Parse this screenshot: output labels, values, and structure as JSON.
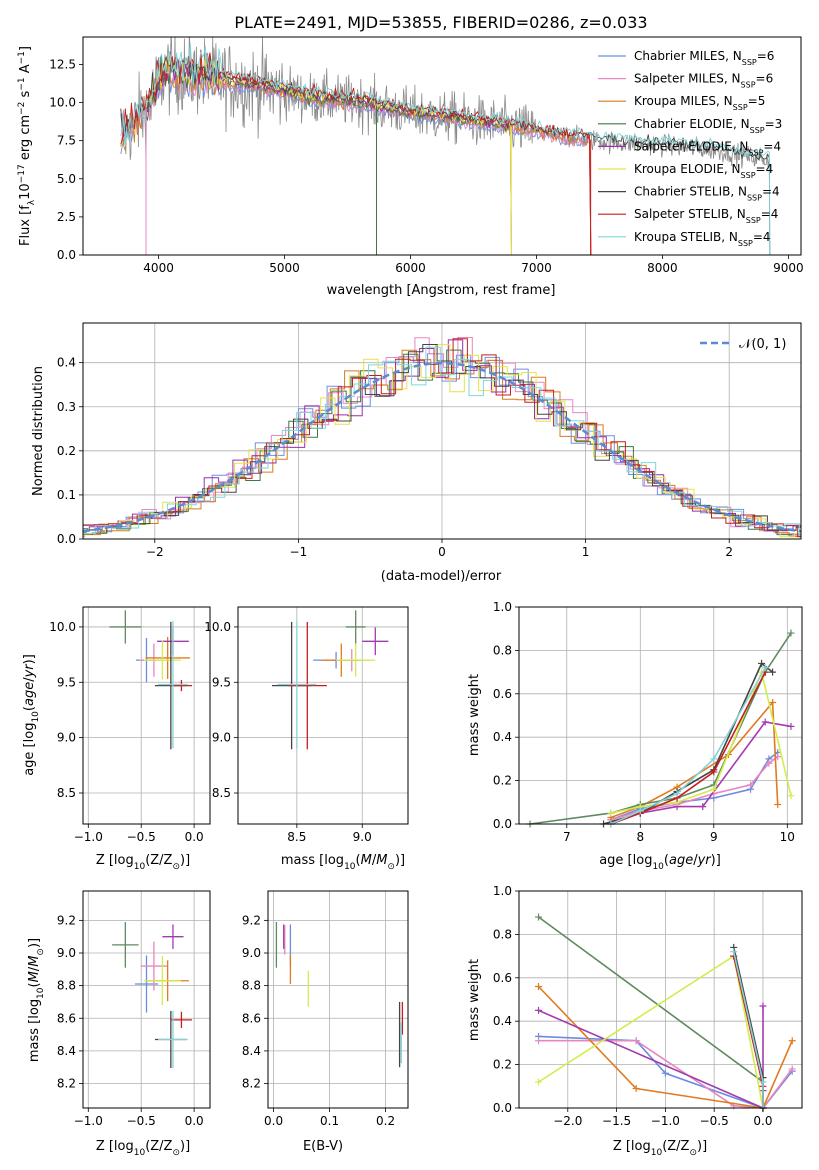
{
  "figure_title": "PLATE=2491, MJD=53855, FIBERID=0286, z=0.033",
  "legend_labels": {
    "model_prefix": [
      "Chabrier MILES, N",
      "Salpeter MILES, N",
      "Kroupa MILES, N",
      "Chabrier ELODIE, N",
      "Salpeter ELODIE, N",
      "Kroupa ELODIE, N",
      "Chabrier STELIB, N",
      "Salpeter STELIB, N",
      "Kroupa STELIB, N"
    ],
    "model_sub": "SSP",
    "model_count": [
      "=6",
      "=6",
      "=5",
      "=3",
      "=4",
      "=4",
      "=4",
      "=4",
      "=4"
    ],
    "normal": "𝒩(0, 1)"
  },
  "colors": [
    "#6f8fe0",
    "#e887c3",
    "#d47c1f",
    "#3d7a3d",
    "#9b2fad",
    "#e6e34a",
    "#444444",
    "#c81e1e",
    "#7fd6da"
  ],
  "colors_panel": {
    "p3": [
      "#6b8ce0",
      "#e587c0",
      "#e07b20",
      "#5f8a5f",
      "#a33bb0",
      "#d4ec4c",
      "#444444",
      "#c81e1e",
      "#86d2d8"
    ],
    "normal_line": "#5b8bd6",
    "spectrum_data": "#8a8a8a"
  },
  "chart_data": [
    {
      "type": "line",
      "title": "PLATE=2491, MJD=53855, FIBERID=0286, z=0.033",
      "xlabel": "wavelength [Angstrom, rest frame]",
      "ylabel": "Flux [f_λ 10^-17 erg cm^-2 s^-1 A^-1]",
      "xlim": [
        3400,
        9100
      ],
      "ylim": [
        0,
        14.3
      ],
      "xticks": [
        4000,
        5000,
        6000,
        7000,
        8000,
        9000
      ],
      "yticks": [
        0.0,
        2.5,
        5.0,
        7.5,
        10.0,
        12.5
      ],
      "continuum": [
        [
          3720,
          7.9
        ],
        [
          3900,
          9.5
        ],
        [
          4050,
          12.0
        ],
        [
          4300,
          11.8
        ],
        [
          4600,
          11.3
        ],
        [
          4850,
          11.0
        ],
        [
          5200,
          10.3
        ],
        [
          5600,
          10.0
        ],
        [
          6000,
          9.3
        ],
        [
          6400,
          8.9
        ],
        [
          6800,
          8.4
        ],
        [
          7200,
          7.8
        ],
        [
          7600,
          7.4
        ],
        [
          8000,
          7.2
        ],
        [
          8400,
          6.9
        ],
        [
          8850,
          6.2
        ]
      ],
      "data_range": [
        3700,
        8850
      ],
      "model_ranges": [
        [
          3700,
          7430
        ],
        [
          3700,
          7430
        ],
        [
          3700,
          7430
        ],
        [
          3900,
          6800
        ],
        [
          3900,
          6800
        ],
        [
          3900,
          6800
        ],
        [
          3700,
          8850
        ],
        [
          3700,
          7430
        ],
        [
          3700,
          8850
        ]
      ],
      "dropouts": [
        3900,
        5730,
        6800,
        7430
      ]
    },
    {
      "type": "histogram",
      "xlabel": "(data-model)/error",
      "ylabel": "Normed distribution",
      "xlim": [
        -2.5,
        2.5
      ],
      "ylim": [
        0,
        0.49
      ],
      "xticks": [
        -2,
        -1,
        0,
        1,
        2
      ],
      "yticks": [
        0.0,
        0.1,
        0.2,
        0.3,
        0.4
      ],
      "bin_width": 0.1,
      "legend": "𝒩(0, 1)"
    },
    {
      "type": "errorbar",
      "xlabel": "Z [log10(Z/Z⊙)]",
      "ylabel": "age [log10(age/yr)]",
      "xlim": [
        -1.05,
        0.15
      ],
      "ylim": [
        8.22,
        10.18
      ],
      "xticks": [
        -1.0,
        -0.5,
        0.0
      ],
      "yticks": [
        8.5,
        9.0,
        9.5,
        10.0
      ],
      "points": [
        [
          -0.45,
          9.7,
          0.2,
          0.4
        ],
        [
          -0.38,
          9.7,
          0.28,
          0.3
        ],
        [
          -0.25,
          9.72,
          0.42,
          0.38
        ],
        [
          -0.65,
          10.0,
          0.3,
          0.3
        ],
        [
          -0.2,
          9.87,
          0.3,
          0.25
        ],
        [
          -0.3,
          9.7,
          0.35,
          0.35
        ],
        [
          -0.22,
          9.47,
          0.3,
          1.15
        ],
        [
          -0.12,
          9.47,
          0.2,
          0.1
        ],
        [
          -0.2,
          9.48,
          0.28,
          1.15
        ]
      ]
    },
    {
      "type": "errorbar",
      "xlabel": "mass [log10(M/M⊙)]",
      "ylabel": "",
      "xlim": [
        8.05,
        9.35
      ],
      "ylim": [
        8.22,
        10.18
      ],
      "xticks": [
        8.5,
        9.0
      ],
      "yticks": [
        8.5,
        9.0,
        9.5,
        10.0
      ],
      "points": [
        [
          8.8,
          9.7,
          0.35,
          0.15
        ],
        [
          8.92,
          9.7,
          0.3,
          0.2
        ],
        [
          8.84,
          9.7,
          0.3,
          0.3
        ],
        [
          8.95,
          10.0,
          0.15,
          0.3
        ],
        [
          9.1,
          9.87,
          0.2,
          0.25
        ],
        [
          8.95,
          9.7,
          0.3,
          0.3
        ],
        [
          8.46,
          9.47,
          0.3,
          1.15
        ],
        [
          8.58,
          9.47,
          0.3,
          1.15
        ],
        [
          8.5,
          9.48,
          0.3,
          1.15
        ]
      ]
    },
    {
      "type": "line",
      "xlabel": "age [log10(age/yr)]",
      "ylabel": "mass weight",
      "xlim": [
        6.35,
        10.2
      ],
      "ylim": [
        0,
        1.0
      ],
      "xticks": [
        7,
        8,
        9,
        10
      ],
      "yticks": [
        0.0,
        0.2,
        0.4,
        0.6,
        0.8,
        1.0
      ],
      "series": [
        {
          "x": [
            7.6,
            8.0,
            8.5,
            9.0,
            9.5,
            9.75,
            9.87
          ],
          "y": [
            0.02,
            0.07,
            0.1,
            0.12,
            0.16,
            0.3,
            0.33
          ]
        },
        {
          "x": [
            7.6,
            8.0,
            8.5,
            9.0,
            9.5,
            9.75,
            9.87
          ],
          "y": [
            0.02,
            0.06,
            0.09,
            0.14,
            0.18,
            0.28,
            0.31
          ]
        },
        {
          "x": [
            7.6,
            8.0,
            8.5,
            9.2,
            9.8,
            9.87
          ],
          "y": [
            0.03,
            0.08,
            0.17,
            0.32,
            0.56,
            0.09
          ]
        },
        {
          "x": [
            6.5,
            7.6,
            8.0,
            8.5,
            9.0,
            9.7,
            10.05
          ],
          "y": [
            0.0,
            0.05,
            0.09,
            0.12,
            0.18,
            0.7,
            0.88
          ]
        },
        {
          "x": [
            7.6,
            8.0,
            8.5,
            8.85,
            9.7,
            10.05
          ],
          "y": [
            0.0,
            0.05,
            0.08,
            0.08,
            0.47,
            0.45
          ]
        },
        {
          "x": [
            7.6,
            8.0,
            8.5,
            9.0,
            9.65,
            10.05
          ],
          "y": [
            0.05,
            0.08,
            0.1,
            0.16,
            0.7,
            0.13
          ]
        },
        {
          "x": [
            7.5,
            8.0,
            8.5,
            9.0,
            9.65,
            9.8
          ],
          "y": [
            0.0,
            0.05,
            0.15,
            0.25,
            0.74,
            0.7
          ]
        },
        {
          "x": [
            7.6,
            8.0,
            8.5,
            9.0,
            9.7
          ],
          "y": [
            0.0,
            0.05,
            0.12,
            0.24,
            0.7
          ]
        },
        {
          "x": [
            7.6,
            8.0,
            8.5,
            9.0,
            9.7
          ],
          "y": [
            0.0,
            0.06,
            0.14,
            0.3,
            0.72
          ]
        }
      ]
    },
    {
      "type": "errorbar",
      "xlabel": "Z [log10(Z/Z⊙)]",
      "ylabel": "mass [log10(M/M⊙)]",
      "xlim": [
        -1.05,
        0.15
      ],
      "ylim": [
        8.05,
        9.38
      ],
      "xticks": [
        -1.0,
        -0.5,
        0.0
      ],
      "yticks": [
        8.2,
        8.4,
        8.6,
        8.8,
        9.0,
        9.2
      ],
      "points": [
        [
          -0.45,
          8.81,
          0.22,
          0.35
        ],
        [
          -0.38,
          8.92,
          0.25,
          0.3
        ],
        [
          -0.25,
          8.83,
          0.4,
          0.25
        ],
        [
          -0.65,
          9.05,
          0.25,
          0.28
        ],
        [
          -0.2,
          9.1,
          0.2,
          0.15
        ],
        [
          -0.3,
          8.83,
          0.35,
          0.3
        ],
        [
          -0.22,
          8.47,
          0.3,
          0.35
        ],
        [
          -0.12,
          8.59,
          0.2,
          0.1
        ],
        [
          -0.2,
          8.47,
          0.28,
          0.35
        ]
      ]
    },
    {
      "type": "errorbar",
      "xlabel": "E(B-V)",
      "ylabel": "",
      "xlim": [
        -0.01,
        0.24
      ],
      "ylim": [
        8.05,
        9.38
      ],
      "xticks": [
        0.0,
        0.1,
        0.2
      ],
      "yticks": [
        8.2,
        8.4,
        8.6,
        8.8,
        9.0,
        9.2
      ],
      "points": [
        [
          0.03,
          9.05,
          0.0,
          0.25
        ],
        [
          0.02,
          9.08,
          0.0,
          0.18
        ],
        [
          0.03,
          8.9,
          0.0,
          0.18
        ],
        [
          0.005,
          9.05,
          0.0,
          0.28
        ],
        [
          0.018,
          9.1,
          0.0,
          0.15
        ],
        [
          0.062,
          8.78,
          0.0,
          0.22
        ],
        [
          0.225,
          8.5,
          0.0,
          0.4
        ],
        [
          0.23,
          8.6,
          0.0,
          0.2
        ],
        [
          0.228,
          8.45,
          0.0,
          0.25
        ]
      ]
    },
    {
      "type": "line",
      "xlabel": "Z [log10(Z/Z⊙)]",
      "ylabel": "mass weight",
      "xlim": [
        -2.5,
        0.4
      ],
      "ylim": [
        0,
        1.0
      ],
      "xticks": [
        -2.0,
        -1.5,
        -1.0,
        -0.5,
        0.0
      ],
      "yticks": [
        0.0,
        0.2,
        0.4,
        0.6,
        0.8,
        1.0
      ],
      "series": [
        {
          "x": [
            -2.3,
            -1.3,
            -1.0,
            0.0,
            0.3
          ],
          "y": [
            0.33,
            0.31,
            0.16,
            0.0,
            0.17
          ]
        },
        {
          "x": [
            -2.3,
            -1.3,
            -0.3,
            0.0,
            0.3
          ],
          "y": [
            0.31,
            0.31,
            0.01,
            0.0,
            0.18
          ]
        },
        {
          "x": [
            -2.3,
            -1.3,
            0.0,
            0.3
          ],
          "y": [
            0.56,
            0.09,
            0.0,
            0.31
          ]
        },
        {
          "x": [
            -2.3,
            0.0,
            0.0
          ],
          "y": [
            0.88,
            0.12,
            0.0
          ]
        },
        {
          "x": [
            -2.3,
            0.0,
            0.0,
            0.0
          ],
          "y": [
            0.45,
            0.0,
            0.08,
            0.47
          ]
        },
        {
          "x": [
            -2.3,
            -0.3,
            0.0
          ],
          "y": [
            0.12,
            0.7,
            0.0
          ]
        },
        {
          "x": [
            -0.3,
            0.0,
            0.0
          ],
          "y": [
            0.74,
            0.14,
            0.0
          ]
        },
        {
          "x": [
            -0.3,
            0.0,
            0.0
          ],
          "y": [
            0.7,
            0.1,
            0.0
          ]
        },
        {
          "x": [
            -0.3,
            0.0,
            0.0
          ],
          "y": [
            0.72,
            0.12,
            0.0
          ]
        }
      ]
    }
  ]
}
